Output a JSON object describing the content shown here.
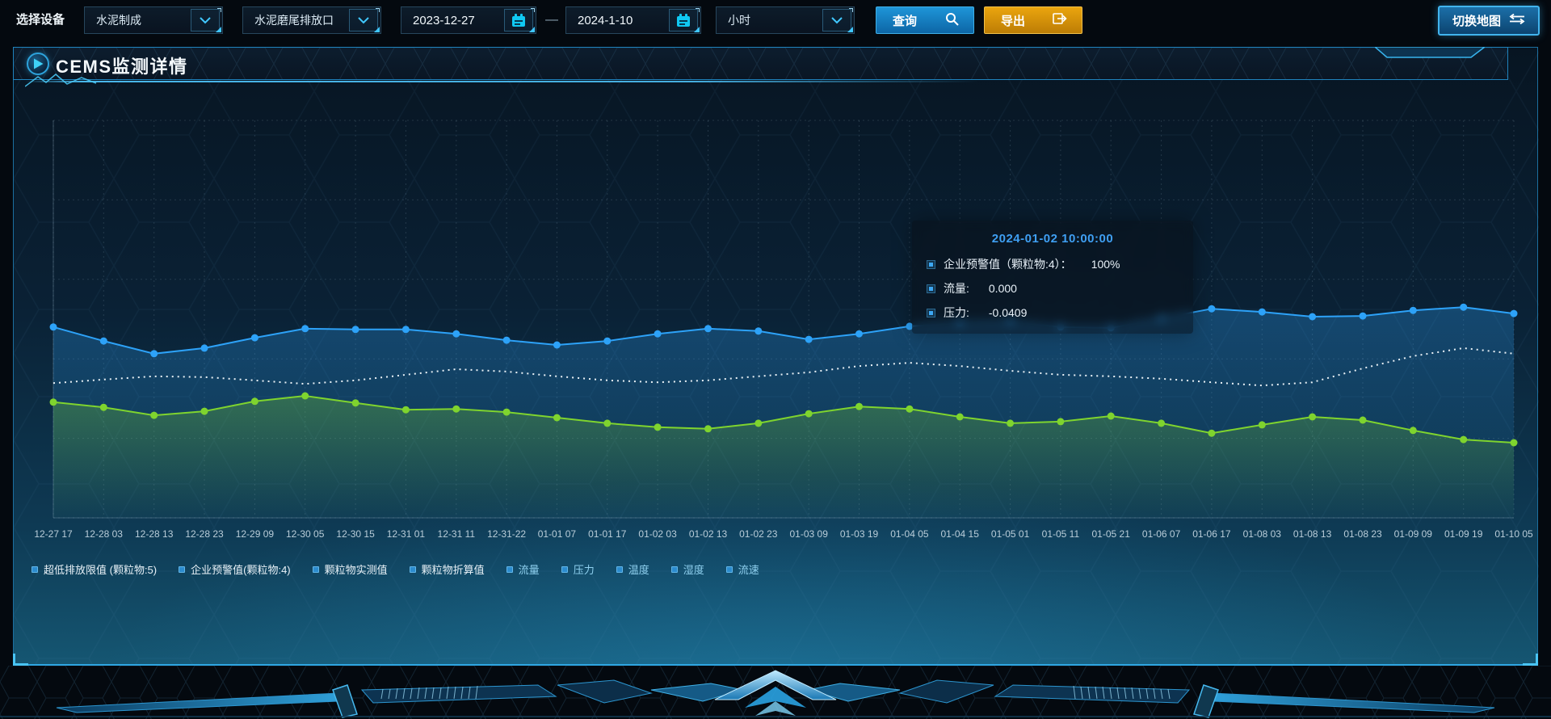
{
  "toolbar": {
    "device_label": "选择设备",
    "device_select": {
      "value": "水泥制成"
    },
    "outlet_select": {
      "value": "水泥磨尾排放口"
    },
    "date_start": "2023-12-27",
    "date_separator": "—",
    "date_end": "2024-1-10",
    "interval_select": {
      "value": "小时"
    },
    "query_button": "查询",
    "export_button": "导出",
    "switch_map_button": "切换地图"
  },
  "panel": {
    "title": "CEMS监测详情"
  },
  "tooltip": {
    "title": "2024-01-02 10:00:00",
    "rows": [
      {
        "label": "企业预警值（颗粒物:4）：",
        "value": "100%"
      },
      {
        "label": "流量:",
        "value": "0.000"
      },
      {
        "label": "压力:",
        "value": "-0.0409"
      }
    ]
  },
  "icons": {
    "query": "search-icon",
    "export": "export-arrow-icon",
    "switch_map": "swap-arrows-icon",
    "date": "calendar-icon",
    "select": "chevron-down-icon",
    "panel": "play-icon"
  },
  "colors": {
    "accent_cyan": "#3fc6ff",
    "query_blue": "#1e95d8",
    "export_orange": "#eaa50e",
    "tooltip_title": "#3f9ff2",
    "legend_marker": "#2c8cce",
    "axis_label": "#b9cdd9"
  },
  "chart_data": {
    "type": "line",
    "title": "",
    "xlabel": "",
    "ylabel": "",
    "y_axis": {
      "visible": false,
      "note": "no tick labels shown; values normalized 0-100 of plot height"
    },
    "grid": true,
    "legend_position": "bottom",
    "x_labels": [
      "12-27 17",
      "12-28 03",
      "12-28 13",
      "12-28 23",
      "12-29 09",
      "12-30 05",
      "12-30 15",
      "12-31 01",
      "12-31 11",
      "12-31-22",
      "01-01 07",
      "01-01 17",
      "01-02 03",
      "01-02 13",
      "01-02 23",
      "01-03 09",
      "01-03 19",
      "01-04 05",
      "01-04 15",
      "01-05 01",
      "01-05 11",
      "01-05 21",
      "01-06 07",
      "01-06 17",
      "01-08 03",
      "01-08 13",
      "01-08 23",
      "01-09 09",
      "01-09 19",
      "01-10 05"
    ],
    "series": [
      {
        "name": "企业预警值(颗粒物:4)",
        "color": "#2da2f8",
        "style": "solid",
        "points": true,
        "area": true,
        "values": [
          48,
          44.5,
          41.3,
          42.7,
          45.3,
          47.6,
          47.4,
          47.4,
          46.3,
          44.7,
          43.5,
          44.5,
          46.3,
          47.6,
          47,
          44.9,
          46.3,
          48.2,
          49,
          49.4,
          48,
          47.8,
          50.2,
          52.6,
          51.8,
          50.6,
          50.8,
          52.2,
          53,
          51.4
        ]
      },
      {
        "name": "颗粒物折算值",
        "color": "#e9f1f6",
        "style": "dotted",
        "points": false,
        "area": false,
        "values": [
          33.9,
          34.8,
          35.6,
          35.4,
          34.6,
          33.7,
          34.6,
          36,
          37.4,
          36.8,
          35.6,
          34.6,
          34.1,
          34.6,
          35.6,
          36.6,
          38.2,
          39,
          38.2,
          37,
          36,
          35.6,
          35,
          34.1,
          33.3,
          34.1,
          37.6,
          40.7,
          42.7,
          41.3
        ]
      },
      {
        "name": "颗粒物实测值",
        "color": "#7fd42e",
        "style": "solid",
        "points": true,
        "area": true,
        "values": [
          29.1,
          27.8,
          25.8,
          26.8,
          29.3,
          30.7,
          28.9,
          27.2,
          27.4,
          26.6,
          25.2,
          23.8,
          22.8,
          22.4,
          23.8,
          26.2,
          28,
          27.4,
          25.4,
          23.8,
          24.2,
          25.6,
          23.8,
          21.3,
          23.4,
          25.4,
          24.6,
          22,
          19.7,
          18.9
        ]
      }
    ],
    "legend": [
      {
        "label": "超低排放限值 (颗粒物:5)",
        "text_color": "#e9f2f8"
      },
      {
        "label": "企业预警值(颗粒物:4)",
        "text_color": "#e9f2f8"
      },
      {
        "label": "颗粒物实测值",
        "text_color": "#e9f2f8"
      },
      {
        "label": "颗粒物折算值",
        "text_color": "#e9f2f8"
      },
      {
        "label": "流量",
        "text_color": "#8fd0ef"
      },
      {
        "label": "压力",
        "text_color": "#8fd0ef"
      },
      {
        "label": "温度",
        "text_color": "#8fd0ef"
      },
      {
        "label": "湿度",
        "text_color": "#8fd0ef"
      },
      {
        "label": "流速",
        "text_color": "#8fd0ef"
      }
    ]
  }
}
